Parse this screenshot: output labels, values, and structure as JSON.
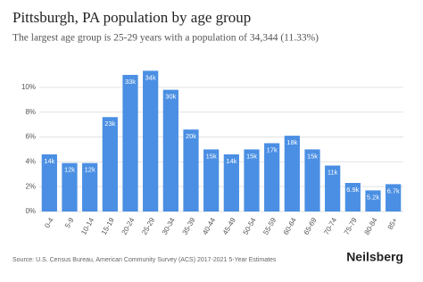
{
  "chart_data": {
    "type": "bar",
    "title": "Pittsburgh, PA population by age group",
    "subtitle": "The largest age group is 25-29 years with a population of 34,344 (11.33%)",
    "categories": [
      "0-4",
      "5-9",
      "10-14",
      "15-19",
      "20-24",
      "25-29",
      "30-34",
      "35-39",
      "40-44",
      "45-49",
      "50-54",
      "55-59",
      "60-64",
      "65-69",
      "70-74",
      "75-79",
      "80-84",
      "85+"
    ],
    "values": [
      4.6,
      3.9,
      3.9,
      7.6,
      11.0,
      11.33,
      9.8,
      6.6,
      5.0,
      4.6,
      5.0,
      5.5,
      6.1,
      5.0,
      3.7,
      2.3,
      1.7,
      2.2
    ],
    "count_labels": [
      "14k",
      "12k",
      "12k",
      "23k",
      "33k",
      "34k",
      "30k",
      "20k",
      "15k",
      "14k",
      "15k",
      "17k",
      "18k",
      "15k",
      "11k",
      "6.9k",
      "5.2k",
      "6.7k"
    ],
    "color": "#4a8fe3",
    "ylim": [
      0,
      12
    ],
    "yticks": [
      {
        "value": 0,
        "label": "0%"
      },
      {
        "value": 2,
        "label": "2%"
      },
      {
        "value": 4,
        "label": "4%"
      },
      {
        "value": 6,
        "label": "6%"
      },
      {
        "value": 8,
        "label": "8%"
      },
      {
        "value": 10,
        "label": "10%"
      }
    ],
    "grid": true,
    "source": "Source: U.S. Census Bureau, American Community Survey (ACS) 2017-2021 5-Year Estimates",
    "brand": "Neilsberg"
  }
}
